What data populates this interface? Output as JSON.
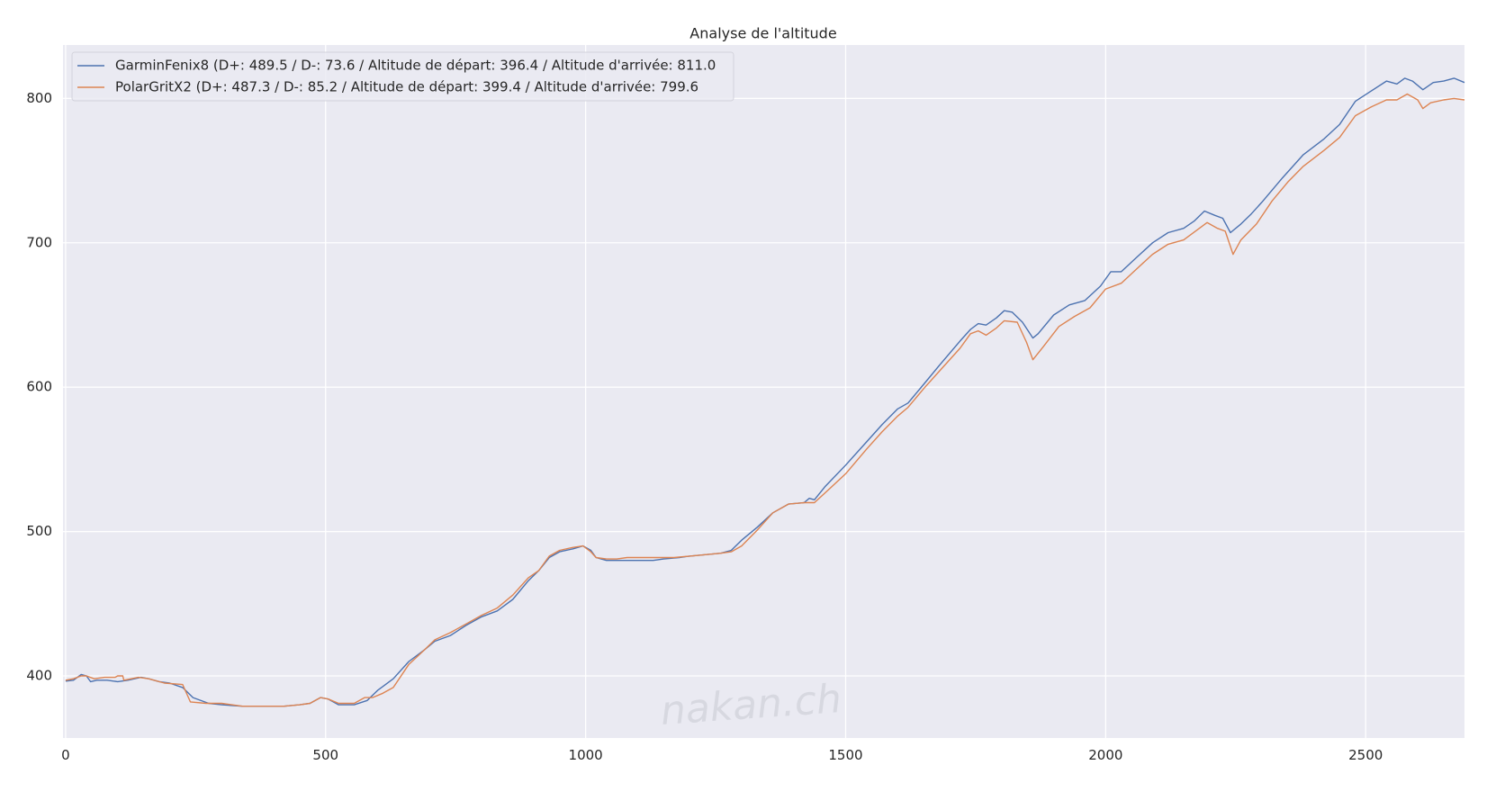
{
  "chart_data": {
    "type": "line",
    "title": "Analyse de l'altitude",
    "xlabel": "",
    "ylabel": "",
    "xlim": [
      -5,
      2690
    ],
    "ylim": [
      357,
      837
    ],
    "xticks": [
      0,
      500,
      1000,
      1500,
      2000,
      2500
    ],
    "yticks": [
      400,
      500,
      600,
      700,
      800
    ],
    "grid": true,
    "legend_position": "top-left",
    "background_color": "#eaeaf2",
    "grid_color": "#ffffff",
    "series": [
      {
        "name": "GarminFenix8 (D+: 489.5 / D-: 73.6 / Altitude de départ: 396.4 / Altitude d'arrivée: 811.0",
        "color": "#4c72b0",
        "points": [
          [
            0,
            396.4
          ],
          [
            15,
            397
          ],
          [
            30,
            401
          ],
          [
            40,
            400
          ],
          [
            48,
            396
          ],
          [
            60,
            397
          ],
          [
            80,
            397
          ],
          [
            100,
            396
          ],
          [
            120,
            397
          ],
          [
            145,
            399
          ],
          [
            160,
            398
          ],
          [
            180,
            396
          ],
          [
            200,
            395
          ],
          [
            225,
            392
          ],
          [
            245,
            385
          ],
          [
            275,
            381
          ],
          [
            300,
            380
          ],
          [
            340,
            379
          ],
          [
            380,
            379
          ],
          [
            420,
            379
          ],
          [
            450,
            380
          ],
          [
            470,
            381
          ],
          [
            490,
            385
          ],
          [
            505,
            384
          ],
          [
            525,
            380
          ],
          [
            555,
            380
          ],
          [
            580,
            383
          ],
          [
            600,
            390
          ],
          [
            630,
            398
          ],
          [
            660,
            410
          ],
          [
            690,
            418
          ],
          [
            710,
            424
          ],
          [
            740,
            428
          ],
          [
            770,
            435
          ],
          [
            800,
            441
          ],
          [
            830,
            445
          ],
          [
            860,
            453
          ],
          [
            890,
            466
          ],
          [
            910,
            473
          ],
          [
            930,
            482
          ],
          [
            950,
            486
          ],
          [
            975,
            488
          ],
          [
            995,
            490
          ],
          [
            1010,
            487
          ],
          [
            1020,
            482
          ],
          [
            1040,
            480
          ],
          [
            1060,
            480
          ],
          [
            1080,
            480
          ],
          [
            1100,
            480
          ],
          [
            1130,
            480
          ],
          [
            1150,
            481
          ],
          [
            1180,
            482
          ],
          [
            1200,
            483
          ],
          [
            1230,
            484
          ],
          [
            1260,
            485
          ],
          [
            1280,
            487
          ],
          [
            1300,
            494
          ],
          [
            1330,
            503
          ],
          [
            1360,
            513
          ],
          [
            1390,
            519
          ],
          [
            1420,
            520
          ],
          [
            1430,
            523
          ],
          [
            1440,
            522
          ],
          [
            1460,
            531
          ],
          [
            1500,
            546
          ],
          [
            1540,
            562
          ],
          [
            1570,
            574
          ],
          [
            1600,
            585
          ],
          [
            1620,
            589
          ],
          [
            1650,
            602
          ],
          [
            1680,
            615
          ],
          [
            1720,
            632
          ],
          [
            1740,
            640
          ],
          [
            1755,
            644
          ],
          [
            1770,
            643
          ],
          [
            1790,
            648
          ],
          [
            1805,
            653
          ],
          [
            1820,
            652
          ],
          [
            1840,
            645
          ],
          [
            1860,
            634
          ],
          [
            1870,
            637
          ],
          [
            1900,
            650
          ],
          [
            1930,
            657
          ],
          [
            1960,
            660
          ],
          [
            1990,
            670
          ],
          [
            2010,
            680
          ],
          [
            2030,
            680
          ],
          [
            2060,
            690
          ],
          [
            2090,
            700
          ],
          [
            2120,
            707
          ],
          [
            2150,
            710
          ],
          [
            2170,
            715
          ],
          [
            2190,
            722
          ],
          [
            2210,
            719
          ],
          [
            2225,
            717
          ],
          [
            2240,
            707
          ],
          [
            2260,
            713
          ],
          [
            2280,
            720
          ],
          [
            2300,
            728
          ],
          [
            2340,
            745
          ],
          [
            2380,
            761
          ],
          [
            2420,
            772
          ],
          [
            2450,
            782
          ],
          [
            2480,
            798
          ],
          [
            2510,
            805
          ],
          [
            2540,
            812
          ],
          [
            2560,
            810
          ],
          [
            2575,
            814
          ],
          [
            2590,
            812
          ],
          [
            2610,
            806
          ],
          [
            2630,
            811
          ],
          [
            2650,
            812
          ],
          [
            2670,
            814
          ],
          [
            2690,
            811
          ]
        ]
      },
      {
        "name": "PolarGritX2 (D+: 487.3 / D-: 85.2 / Altitude de départ: 399.4 / Altitude d'arrivée: 799.6",
        "color": "#dd8452",
        "points": [
          [
            0,
            397
          ],
          [
            15,
            398
          ],
          [
            30,
            400
          ],
          [
            40,
            400
          ],
          [
            55,
            398
          ],
          [
            75,
            399
          ],
          [
            95,
            399
          ],
          [
            100,
            400
          ],
          [
            110,
            400
          ],
          [
            112,
            397
          ],
          [
            140,
            399
          ],
          [
            160,
            398
          ],
          [
            190,
            395
          ],
          [
            225,
            394
          ],
          [
            240,
            382
          ],
          [
            270,
            381
          ],
          [
            300,
            381
          ],
          [
            340,
            379
          ],
          [
            380,
            379
          ],
          [
            420,
            379
          ],
          [
            450,
            380
          ],
          [
            470,
            381
          ],
          [
            490,
            385
          ],
          [
            505,
            384
          ],
          [
            525,
            381
          ],
          [
            555,
            381
          ],
          [
            575,
            385
          ],
          [
            590,
            385
          ],
          [
            610,
            388
          ],
          [
            630,
            392
          ],
          [
            660,
            408
          ],
          [
            690,
            418
          ],
          [
            710,
            425
          ],
          [
            740,
            430
          ],
          [
            770,
            436
          ],
          [
            800,
            442
          ],
          [
            830,
            447
          ],
          [
            860,
            456
          ],
          [
            890,
            468
          ],
          [
            910,
            473
          ],
          [
            930,
            483
          ],
          [
            950,
            487
          ],
          [
            975,
            489
          ],
          [
            995,
            490
          ],
          [
            1010,
            486
          ],
          [
            1020,
            482
          ],
          [
            1040,
            481
          ],
          [
            1060,
            481
          ],
          [
            1080,
            482
          ],
          [
            1100,
            482
          ],
          [
            1150,
            482
          ],
          [
            1170,
            482
          ],
          [
            1200,
            483
          ],
          [
            1230,
            484
          ],
          [
            1260,
            485
          ],
          [
            1280,
            486
          ],
          [
            1300,
            490
          ],
          [
            1330,
            501
          ],
          [
            1360,
            513
          ],
          [
            1390,
            519
          ],
          [
            1420,
            520
          ],
          [
            1440,
            520
          ],
          [
            1470,
            530
          ],
          [
            1500,
            540
          ],
          [
            1540,
            557
          ],
          [
            1570,
            569
          ],
          [
            1600,
            580
          ],
          [
            1620,
            586
          ],
          [
            1650,
            599
          ],
          [
            1680,
            611
          ],
          [
            1720,
            627
          ],
          [
            1740,
            637
          ],
          [
            1755,
            639
          ],
          [
            1770,
            636
          ],
          [
            1790,
            641
          ],
          [
            1805,
            646
          ],
          [
            1830,
            645
          ],
          [
            1848,
            631
          ],
          [
            1860,
            619
          ],
          [
            1880,
            628
          ],
          [
            1910,
            642
          ],
          [
            1940,
            649
          ],
          [
            1970,
            655
          ],
          [
            2000,
            668
          ],
          [
            2030,
            672
          ],
          [
            2060,
            682
          ],
          [
            2090,
            692
          ],
          [
            2120,
            699
          ],
          [
            2150,
            702
          ],
          [
            2180,
            710
          ],
          [
            2195,
            714
          ],
          [
            2215,
            710
          ],
          [
            2230,
            708
          ],
          [
            2245,
            692
          ],
          [
            2260,
            702
          ],
          [
            2290,
            713
          ],
          [
            2320,
            729
          ],
          [
            2350,
            742
          ],
          [
            2380,
            753
          ],
          [
            2420,
            764
          ],
          [
            2450,
            773
          ],
          [
            2480,
            788
          ],
          [
            2510,
            794
          ],
          [
            2540,
            799
          ],
          [
            2560,
            799
          ],
          [
            2580,
            803
          ],
          [
            2600,
            799
          ],
          [
            2610,
            793
          ],
          [
            2625,
            797
          ],
          [
            2650,
            799
          ],
          [
            2670,
            800
          ],
          [
            2690,
            799
          ]
        ]
      }
    ]
  },
  "watermark": "nakan.ch"
}
